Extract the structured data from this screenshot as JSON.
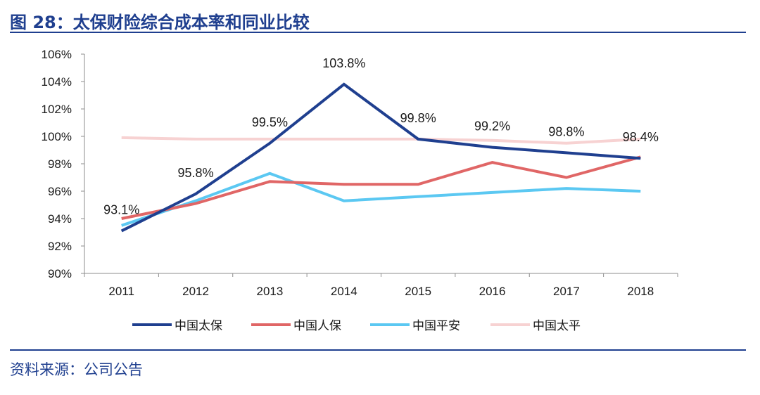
{
  "header": {
    "title": "图 28：太保财险综合成本率和同业比较"
  },
  "footer": {
    "source": "资料来源：公司公告"
  },
  "chart_data": {
    "type": "line",
    "title": "图 28：太保财险综合成本率和同业比较",
    "xlabel": "",
    "ylabel": "",
    "categories": [
      "2011",
      "2012",
      "2013",
      "2014",
      "2015",
      "2016",
      "2017",
      "2018"
    ],
    "ylim": [
      90,
      106
    ],
    "ytick_step": 2,
    "ytick_suffix": "%",
    "grid": false,
    "legend_position": "bottom",
    "series": [
      {
        "name": "中国太保",
        "color": "#1F3F8F",
        "values": [
          93.1,
          95.8,
          99.5,
          103.8,
          99.8,
          99.2,
          98.8,
          98.4
        ],
        "data_labels": [
          "93.1%",
          "95.8%",
          "99.5%",
          "103.8%",
          "99.8%",
          "99.2%",
          "98.8%",
          "98.4%"
        ]
      },
      {
        "name": "中国人保",
        "color": "#E06666",
        "values": [
          94.0,
          95.1,
          96.7,
          96.5,
          96.5,
          98.1,
          97.0,
          98.5
        ]
      },
      {
        "name": "中国平安",
        "color": "#5BC8F2",
        "values": [
          93.5,
          95.3,
          97.3,
          95.3,
          95.6,
          95.9,
          96.2,
          96.0
        ]
      },
      {
        "name": "中国太平",
        "color": "#F7D2D2",
        "values": [
          99.9,
          99.8,
          99.8,
          99.8,
          99.8,
          99.7,
          99.5,
          99.8
        ]
      }
    ]
  }
}
